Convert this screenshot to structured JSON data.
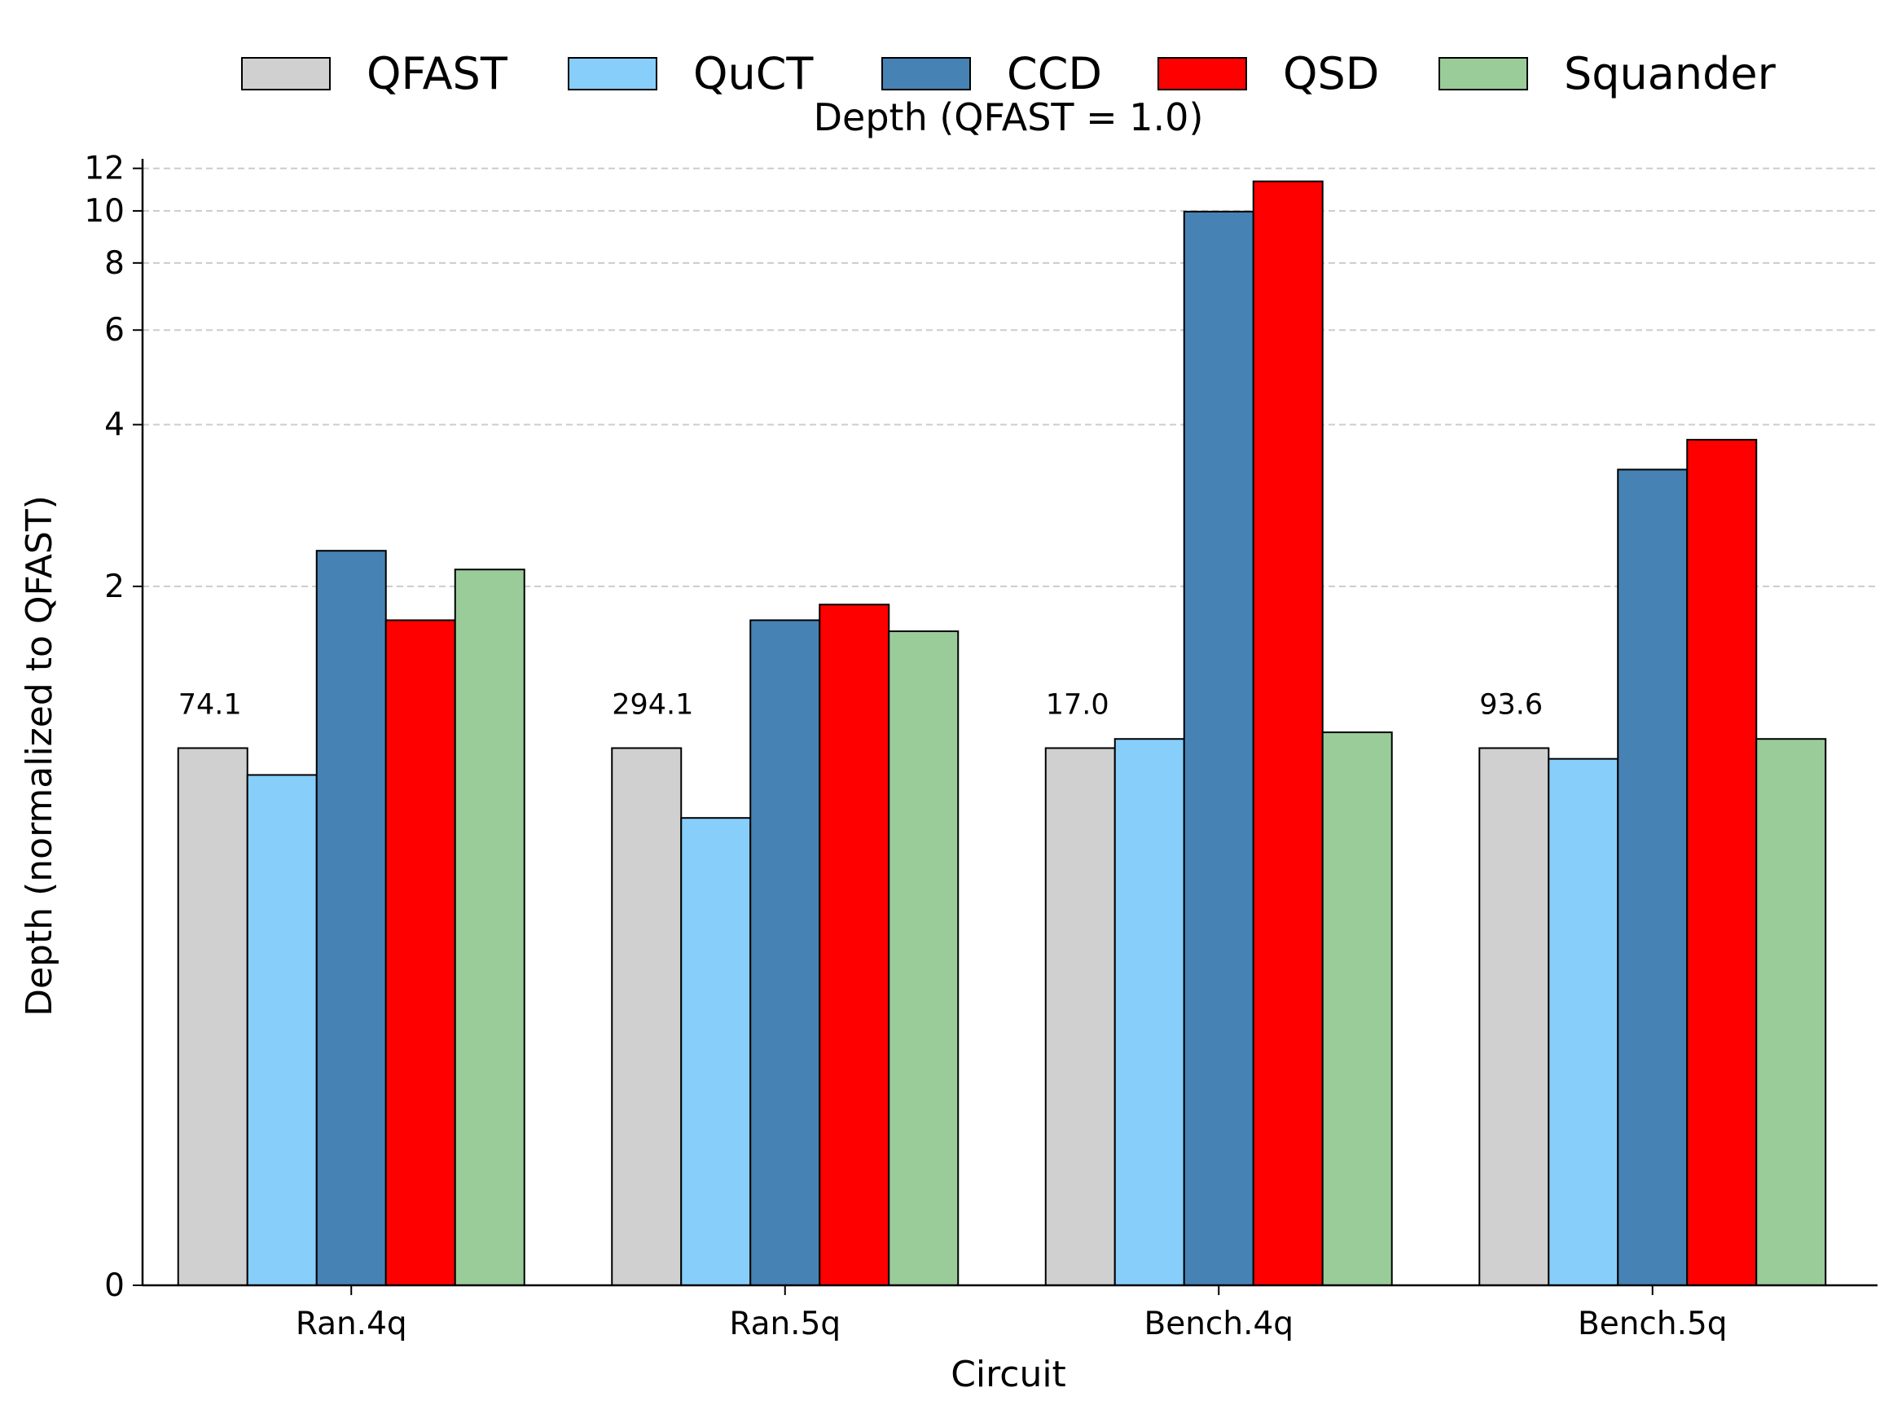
{
  "chart_data": {
    "type": "bar",
    "title": "Depth (QFAST = 1.0)",
    "xlabel": "Circuit",
    "ylabel": "Depth (normalized to QFAST)",
    "categories": [
      "Ran.4q",
      "Ran.5q",
      "Bench.4q",
      "Bench.5q"
    ],
    "series": [
      {
        "name": "QFAST",
        "color": "#d0d0d0",
        "values": [
          1.0,
          1.0,
          1.0,
          1.0
        ]
      },
      {
        "name": "QuCT",
        "color": "#87cefa",
        "values": [
          0.95,
          0.87,
          1.04,
          0.98
        ]
      },
      {
        "name": "CCD",
        "color": "#4682b4",
        "values": [
          2.33,
          1.73,
          9.97,
          3.3
        ]
      },
      {
        "name": "QSD",
        "color": "#ff0000",
        "values": [
          1.73,
          1.85,
          11.35,
          3.75
        ]
      },
      {
        "name": "Squander",
        "color": "#99cc99",
        "values": [
          2.15,
          1.65,
          1.07,
          1.04
        ]
      }
    ],
    "annotations": [
      "74.1",
      "294.1",
      "17.0",
      "93.6"
    ],
    "yticks": [
      "0",
      "2",
      "4",
      "6",
      "8",
      "10",
      "12"
    ],
    "ylim": [
      0,
      12.5
    ],
    "yscale": "symlog",
    "grid": "y-dashed",
    "legend": "top-center"
  }
}
